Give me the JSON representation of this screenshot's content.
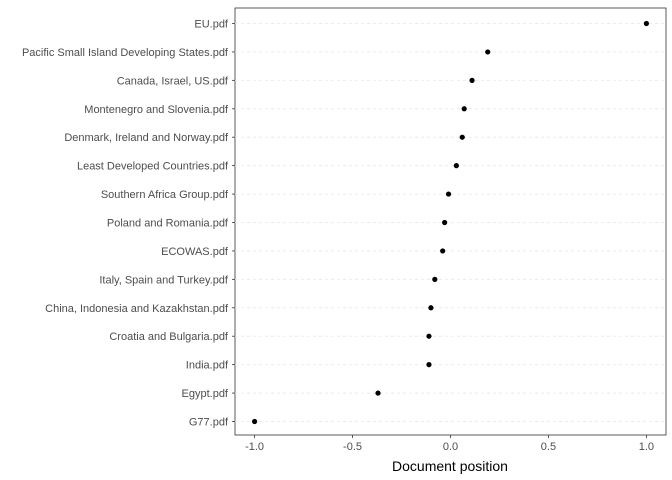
{
  "chart_data": {
    "type": "scatter",
    "title": "",
    "xlabel": "Document position",
    "ylabel": "",
    "xlim": [
      -1.1,
      1.1
    ],
    "x_ticks": [
      -1.0,
      -0.5,
      0.0,
      0.5,
      1.0
    ],
    "x_tick_labels": [
      "-1.0",
      "-0.5",
      "0.0",
      "0.5",
      "1.0"
    ],
    "grid": "dashed horizontal major lines",
    "legend": "none",
    "categories": [
      "EU.pdf",
      "Pacific Small Island Developing States.pdf",
      "Canada, Israel, US.pdf",
      "Montenegro and Slovenia.pdf",
      "Denmark, Ireland and Norway.pdf",
      "Least Developed Countries.pdf",
      "Southern Africa Group.pdf",
      "Poland and Romania.pdf",
      "ECOWAS.pdf",
      "Italy, Spain and Turkey.pdf",
      "China, Indonesia and Kazakhstan.pdf",
      "Croatia and Bulgaria.pdf",
      "India.pdf",
      "Egypt.pdf",
      "G77.pdf"
    ],
    "values": [
      1.0,
      0.19,
      0.11,
      0.07,
      0.06,
      0.03,
      -0.01,
      -0.03,
      -0.04,
      -0.08,
      -0.1,
      -0.11,
      -0.11,
      -0.37,
      -1.0
    ],
    "colors": {
      "point": "#000000",
      "grid": "#ebebeb",
      "panel_border": "#333333"
    }
  }
}
